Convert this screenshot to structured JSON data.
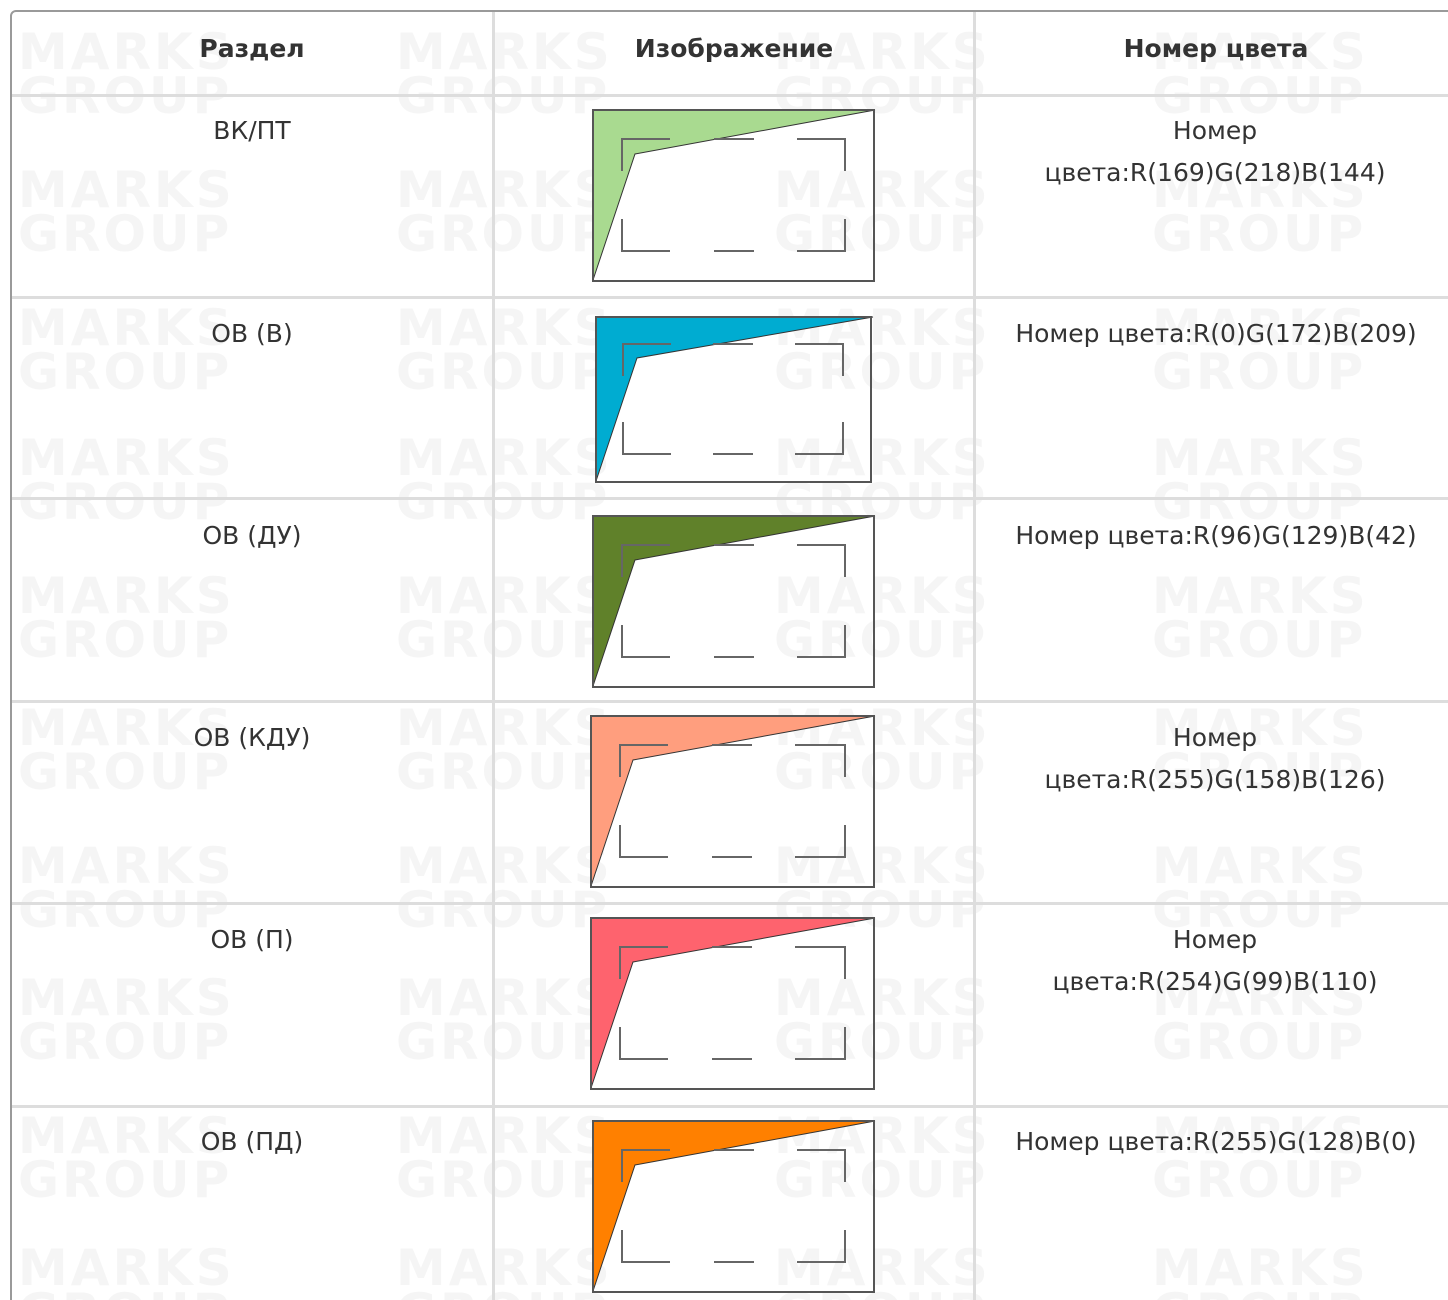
{
  "table": {
    "headers": {
      "section": "Раздел",
      "image": "Изображение",
      "color_number": "Номер цвета"
    },
    "rows": [
      {
        "section": "ВК/ПТ",
        "color_label": "Номер цвета:R(169)G(218)B(144)",
        "fill": "#a9da90"
      },
      {
        "section": "ОВ (В)",
        "color_label": "Номер цвета:R(0)G(172)B(209)",
        "fill": "#00acd1"
      },
      {
        "section": "ОВ (ДУ)",
        "color_label": "Номер цвета:R(96)G(129)B(42)",
        "fill": "#60812a"
      },
      {
        "section": "ОВ (КДУ)",
        "color_label": "Номер цвета:R(255)G(158)B(126)",
        "fill": "#ff9e7e"
      },
      {
        "section": "ОВ (П)",
        "color_label": "Номер цвета:R(254)G(99)B(110)",
        "fill": "#fe636e"
      },
      {
        "section": "ОВ (ПД)",
        "color_label": "Номер цвета:R(255)G(128)B(0)",
        "fill": "#ff8000"
      }
    ]
  },
  "watermark": {
    "line1": "MARKS",
    "line2": "GROUP",
    "color": "#f5f5f5"
  }
}
